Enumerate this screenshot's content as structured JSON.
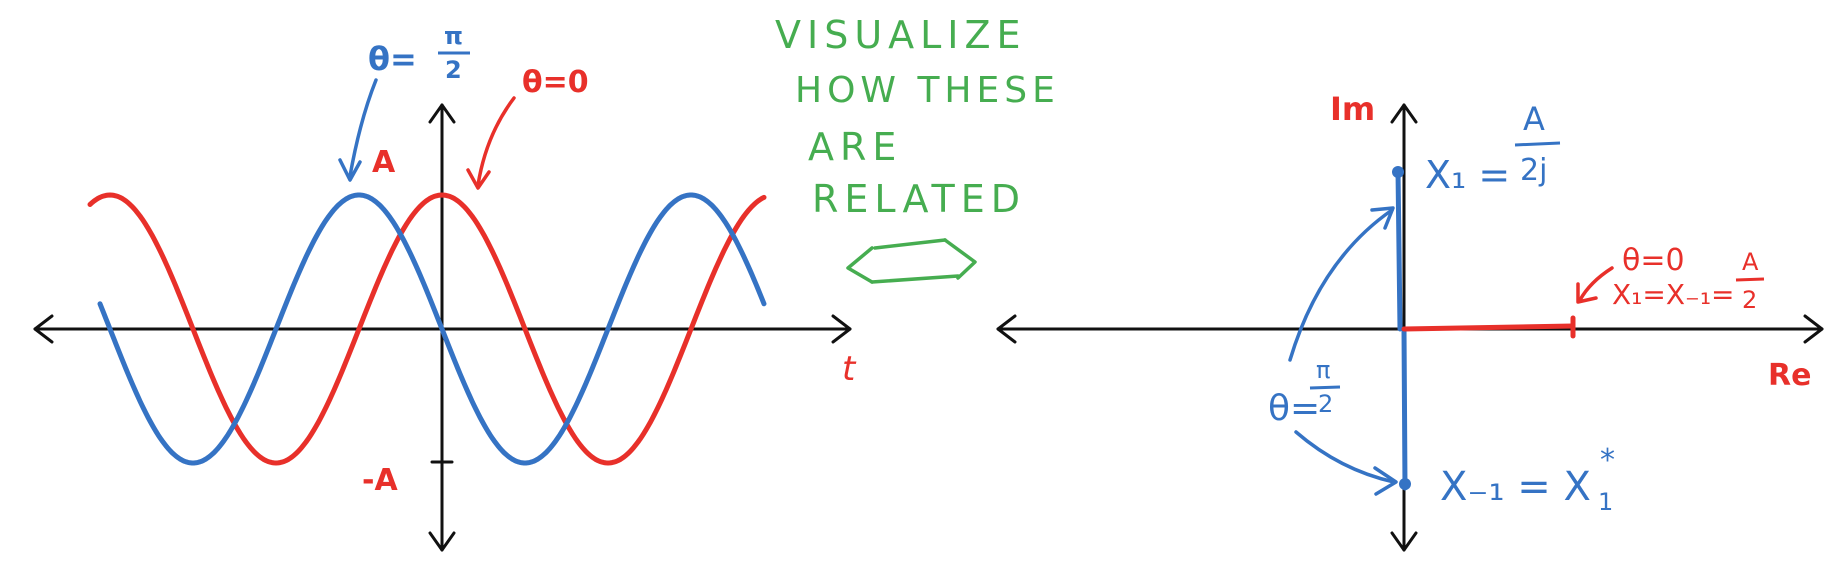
{
  "colors": {
    "red": "#e8302a",
    "blue": "#3573c4",
    "green": "#46ad50",
    "axis": "#111111"
  },
  "left_plot": {
    "horizontal_axis_label": "t",
    "amplitude_top_label": "A",
    "amplitude_bottom_label": "-A",
    "red_curve_label": "θ=0",
    "blue_curve_label_theta": "θ=",
    "blue_curve_label_num": "π",
    "blue_curve_label_den": "2"
  },
  "note": {
    "line1": "VISUALIZE",
    "line2": "HOW THESE",
    "line3": "ARE",
    "line4": "RELATED"
  },
  "right_plot": {
    "imag_axis_label": "Im",
    "real_axis_label": "Re",
    "blue_top_label_lhs": "X₁ =",
    "blue_top_label_num": "A",
    "blue_top_label_den": "2j",
    "blue_bottom_label_lhs": "X₋₁ = X",
    "blue_bottom_label_sup": "*",
    "blue_bottom_label_sub": "1",
    "theta_label_lhs": "θ=",
    "theta_label_num": "π",
    "theta_label_den": "2",
    "red_label_line1": "θ=0",
    "red_label_line2_lhs": "X₁=X₋₁=",
    "red_label_line2_num": "A",
    "red_label_line2_den": "2"
  }
}
